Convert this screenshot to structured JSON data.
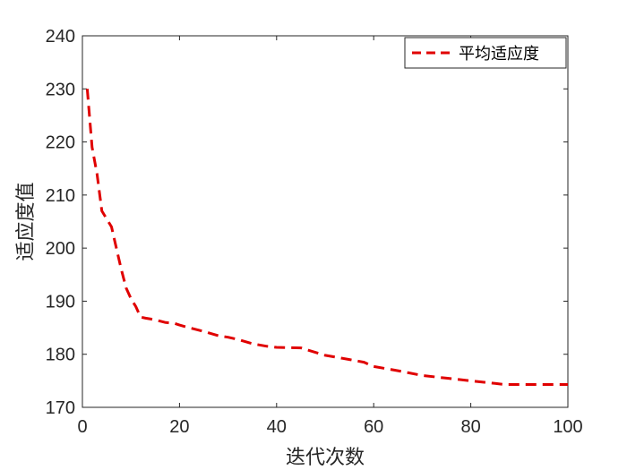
{
  "chart_data": {
    "type": "line",
    "title": "",
    "xlabel": "迭代次数",
    "ylabel": "适应度值",
    "xlim": [
      0,
      100
    ],
    "ylim": [
      170,
      240
    ],
    "xticks": [
      0,
      20,
      40,
      60,
      80,
      100
    ],
    "yticks": [
      170,
      180,
      190,
      200,
      210,
      220,
      230,
      240
    ],
    "grid": false,
    "legend_position": "top-right",
    "series": [
      {
        "name": "平均适应度",
        "color": "#e00000",
        "line_style": "dashed",
        "x": [
          1,
          2,
          3,
          4,
          5,
          6,
          7,
          8,
          9,
          10,
          11,
          12,
          13,
          15,
          17,
          19,
          20,
          22,
          25,
          28,
          30,
          32,
          35,
          38,
          40,
          45,
          50,
          55,
          58,
          60,
          65,
          70,
          75,
          80,
          85,
          87,
          90,
          95,
          100
        ],
        "y": [
          230,
          219,
          214,
          207,
          205.5,
          204,
          200,
          196,
          192.5,
          190.5,
          189,
          187,
          186.8,
          186.5,
          186,
          185.8,
          185.5,
          185,
          184.3,
          183.5,
          183.2,
          182.8,
          182,
          181.5,
          181.3,
          181.2,
          179.8,
          179,
          178.5,
          177.7,
          176.9,
          176,
          175.5,
          175,
          174.5,
          174.3,
          174.3,
          174.3,
          174.3
        ]
      }
    ]
  }
}
